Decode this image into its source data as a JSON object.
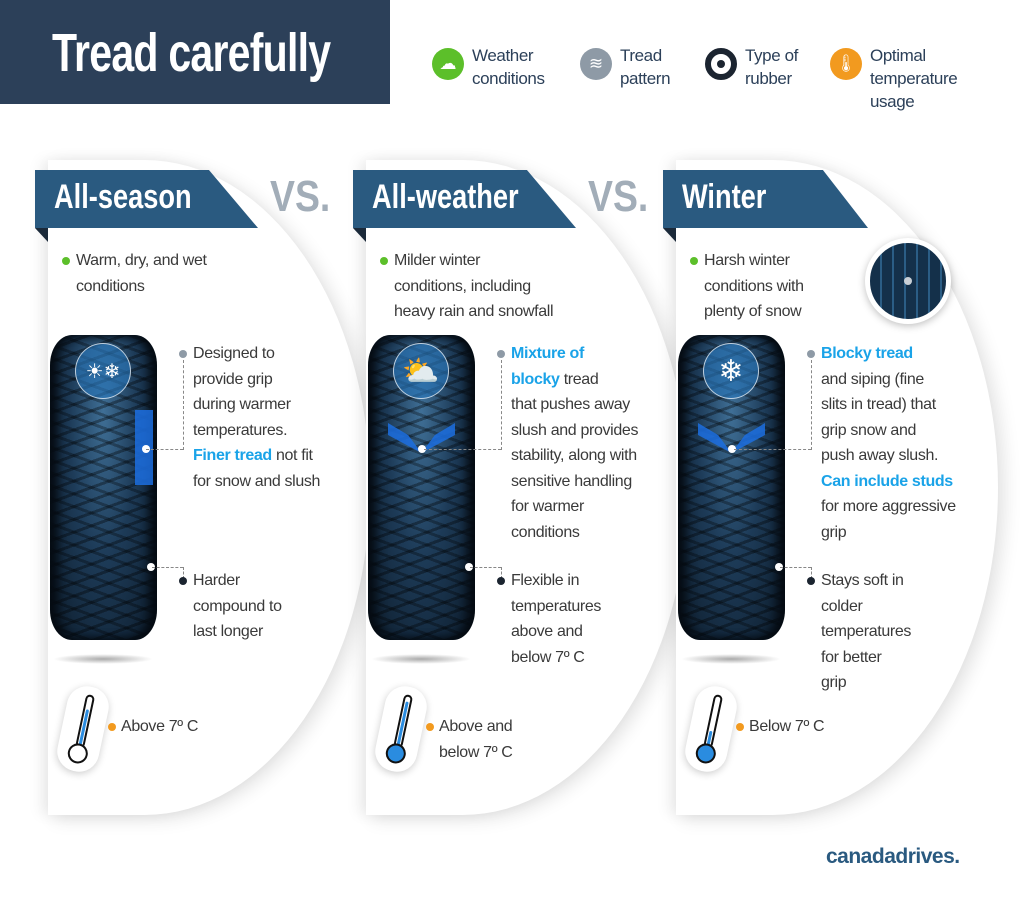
{
  "title": "Tread carefully",
  "legend": [
    {
      "icon": "weather-cloud-sun-icon",
      "label": [
        "Weather",
        "conditions"
      ],
      "color": "#5cbf2a"
    },
    {
      "icon": "tread-pattern-icon",
      "label": [
        "Tread",
        "pattern"
      ],
      "color": "#8e9aa6"
    },
    {
      "icon": "tire-rubber-icon",
      "label": [
        "Type of",
        "rubber"
      ],
      "color": "#1b2430"
    },
    {
      "icon": "thermometer-icon",
      "label": [
        "Optimal",
        "temperature",
        "usage"
      ],
      "color": "#f29a1f"
    }
  ],
  "vs_label": "VS.",
  "colors": {
    "accent": "#1aa3e8",
    "band": "#2a5a80",
    "weather": "#5cbf2a",
    "tread": "#8e9aa6",
    "rubber": "#1b2430",
    "temperature": "#f29a1f"
  },
  "panels": [
    {
      "name": "All-season",
      "tire_icon": "sun-snowflake-icon",
      "weather": [
        "Warm, dry, and wet",
        "conditions"
      ],
      "tread": [
        [
          {
            "t": "Designed to"
          }
        ],
        [
          {
            "t": "provide grip"
          }
        ],
        [
          {
            "t": "during warmer"
          }
        ],
        [
          {
            "t": "temperatures."
          }
        ],
        [
          {
            "t": "Finer tread",
            "hl": true
          },
          {
            "t": " not fit"
          }
        ],
        [
          {
            "t": "for snow and slush"
          }
        ]
      ],
      "rubber": [
        "Harder",
        "compound to",
        "last longer"
      ],
      "temperature": [
        "Above 7º C"
      ],
      "thermometer_level": 0.75
    },
    {
      "name": "All-weather",
      "tire_icon": "sun-cloud-icon",
      "weather": [
        "Milder winter",
        "conditions, including",
        "heavy rain and snowfall"
      ],
      "tread": [
        [
          {
            "t": "Mixture of",
            "hl": true
          }
        ],
        [
          {
            "t": "blocky",
            "hl": true
          },
          {
            "t": " tread"
          }
        ],
        [
          {
            "t": "that pushes away"
          }
        ],
        [
          {
            "t": "slush and provides"
          }
        ],
        [
          {
            "t": "stability, along with"
          }
        ],
        [
          {
            "t": "sensitive handling"
          }
        ],
        [
          {
            "t": "for warmer"
          }
        ],
        [
          {
            "t": "conditions"
          }
        ]
      ],
      "rubber": [
        "Flexible in",
        "temperatures",
        "above and",
        "below 7º C"
      ],
      "temperature": [
        "Above and",
        "below 7º C"
      ],
      "thermometer_level": 0.9
    },
    {
      "name": "Winter",
      "tire_icon": "snowflake-icon",
      "weather": [
        "Harsh winter",
        "conditions with",
        "plenty of snow"
      ],
      "tread": [
        [
          {
            "t": "Blocky tread",
            "hl": true
          }
        ],
        [
          {
            "t": "and siping (fine"
          }
        ],
        [
          {
            "t": "slits in tread) that"
          }
        ],
        [
          {
            "t": "grip snow and"
          }
        ],
        [
          {
            "t": "push away slush."
          }
        ],
        [
          {
            "t": "Can include studs",
            "hl": true
          }
        ],
        [
          {
            "t": "for more aggressive"
          }
        ],
        [
          {
            "t": "grip"
          }
        ]
      ],
      "rubber": [
        "Stays soft in",
        "colder",
        "temperatures",
        "for better",
        "grip"
      ],
      "temperature": [
        "Below 7º C"
      ],
      "thermometer_level": 0.3
    }
  ],
  "brand": "canadadrives."
}
